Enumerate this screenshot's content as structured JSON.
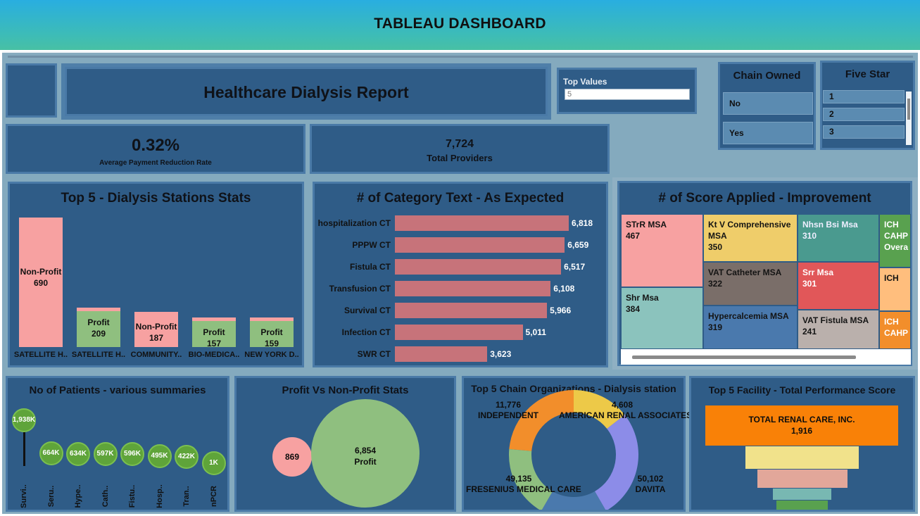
{
  "banner": {
    "title": "TABLEAU DASHBOARD"
  },
  "report": {
    "title": "Healthcare Dialysis Report"
  },
  "top_values": {
    "label": "Top Values",
    "value": "5"
  },
  "chain_owned": {
    "title": "Chain Owned",
    "options": [
      "No",
      "Yes"
    ]
  },
  "five_star": {
    "title": "Five Star",
    "options": [
      "1",
      "2",
      "3"
    ]
  },
  "kpis": {
    "payment_rate_value": "0.32%",
    "payment_rate_label": "Average Payment Reduction Rate",
    "providers_value": "7,724",
    "providers_label": "Total Providers"
  },
  "stations": {
    "title": "Top 5 - Dialysis Stations Stats",
    "bars": [
      {
        "category": "SATELLITE H..",
        "type": "Non-Profit",
        "value": 690,
        "value_label": "690"
      },
      {
        "category": "SATELLITE H..",
        "type": "Profit",
        "value": 209,
        "value_label": "209"
      },
      {
        "category": "COMMUNITY..",
        "type": "Non-Profit",
        "value": 187,
        "value_label": "187"
      },
      {
        "category": "BIO-MEDICA..",
        "type": "Profit",
        "value": 157,
        "value_label": "157"
      },
      {
        "category": "NEW YORK D..",
        "type": "Profit",
        "value": 159,
        "value_label": "159"
      }
    ]
  },
  "category_text": {
    "title": "# of Category Text - As Expected",
    "bars": [
      {
        "label": "hospitalization CT",
        "value": 6818,
        "value_label": "6,818"
      },
      {
        "label": "PPPW CT",
        "value": 6659,
        "value_label": "6,659"
      },
      {
        "label": "Fistula CT",
        "value": 6517,
        "value_label": "6,517"
      },
      {
        "label": "Transfusion CT",
        "value": 6108,
        "value_label": "6,108"
      },
      {
        "label": "Survival CT",
        "value": 5966,
        "value_label": "5,966"
      },
      {
        "label": "Infection CT",
        "value": 5011,
        "value_label": "5,011"
      },
      {
        "label": "SWR CT",
        "value": 3623,
        "value_label": "3,623"
      }
    ]
  },
  "score_applied": {
    "title": "# of Score Applied - Improvement",
    "cells": [
      {
        "name": "STrR MSA",
        "value": "467",
        "color": "#f7a1a1"
      },
      {
        "name": "Shr Msa",
        "value": "384",
        "color": "#8bc3bd"
      },
      {
        "name": "Kt V Comprehensive MSA",
        "value": "350",
        "color": "#efcd6a"
      },
      {
        "name": "VAT Catheter MSA",
        "value": "322",
        "color": "#7a6e69"
      },
      {
        "name": "Hypercalcemia MSA",
        "value": "319",
        "color": "#4a79ad"
      },
      {
        "name": "Nhsn Bsi Msa",
        "value": "310",
        "color": "#4a9a8f"
      },
      {
        "name": "Srr Msa",
        "value": "301",
        "color": "#e15759"
      },
      {
        "name": "VAT Fistula MSA",
        "value": "241",
        "color": "#bab0ac"
      },
      {
        "name": "ICH CAHP Overa",
        "value": "",
        "color": "#59a14f"
      },
      {
        "name": "ICH",
        "value": "",
        "color": "#ffbe7d"
      },
      {
        "name": "ICH CAHP",
        "value": "",
        "color": "#f28e2b"
      }
    ]
  },
  "patients": {
    "title": "No of Patients - various summaries",
    "items": [
      {
        "label": "Survi..",
        "value": 1938,
        "value_label": "1,938K"
      },
      {
        "label": "Seru..",
        "value": 664,
        "value_label": "664K"
      },
      {
        "label": "Hype..",
        "value": 634,
        "value_label": "634K"
      },
      {
        "label": "Cath..",
        "value": 597,
        "value_label": "597K"
      },
      {
        "label": "Fistu..",
        "value": 596,
        "value_label": "596K"
      },
      {
        "label": "Hosp..",
        "value": 495,
        "value_label": "495K"
      },
      {
        "label": "Tran..",
        "value": 422,
        "value_label": "422K"
      },
      {
        "label": "nPCR",
        "value": 1,
        "value_label": "1K"
      }
    ]
  },
  "profit_stats": {
    "title": "Profit Vs Non-Profit Stats",
    "small_value": "869",
    "large_value": "6,854",
    "large_label": "Profit"
  },
  "chain_orgs": {
    "title": "Top 5 Chain Organizations - Dialysis station",
    "segments": [
      {
        "name": "INDEPENDENT",
        "value": 11776,
        "value_label": "11,776",
        "color": "#f28e2b"
      },
      {
        "name": "AMERICAN RENAL ASSOCIATES",
        "value": 4608,
        "value_label": "4,608",
        "color": "#edc948"
      },
      {
        "name": "DAVITA",
        "value": 50102,
        "value_label": "50,102",
        "color": "#8c8ce8"
      },
      {
        "name": "FRESENIUS MEDICAL CARE",
        "value": 49135,
        "value_label": "49,135",
        "color": "#8fbf7f"
      }
    ]
  },
  "facility": {
    "title": "Top 5 Facility - Total Performance Score",
    "top_name": "TOTAL RENAL CARE, INC.",
    "top_value": "1,916"
  }
}
